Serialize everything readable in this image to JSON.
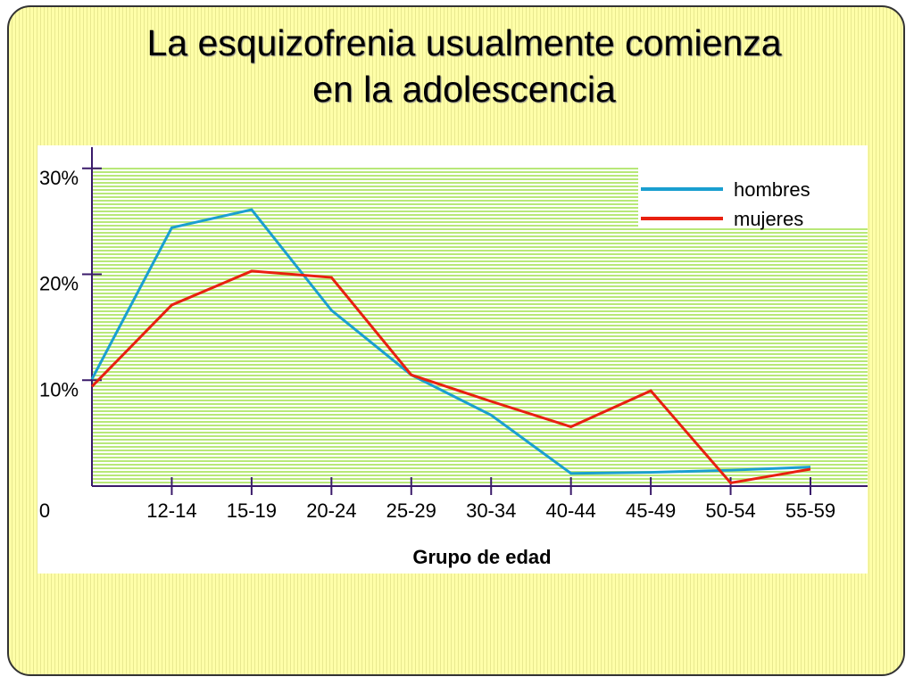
{
  "chart_data": {
    "type": "line",
    "title": "La esquizofrenia usualmente comienza en la adolescencia",
    "x_label": "Grupo de edad",
    "categories": [
      null,
      "12-14",
      "15-19",
      "20-24",
      "25-29",
      "30-34",
      "40-44",
      "45-49",
      "50-54",
      "55-59"
    ],
    "series": [
      {
        "name": "hombres",
        "color": "#1a9fd0",
        "values": [
          10.1,
          24.4,
          26.1,
          16.6,
          10.5,
          6.7,
          1.2,
          1.3,
          1.5,
          1.8
        ]
      },
      {
        "name": "mujeres",
        "color": "#e82010",
        "values": [
          9.4,
          17.1,
          20.3,
          19.7,
          10.5,
          8.0,
          5.6,
          9.0,
          0.3,
          1.6
        ]
      }
    ],
    "ylim": [
      0,
      32
    ],
    "yticks": [
      {
        "value": 0,
        "label": "0"
      },
      {
        "value": 10,
        "label": "10%"
      },
      {
        "value": 20,
        "label": "20%"
      },
      {
        "value": 30,
        "label": "30%"
      }
    ],
    "legend": "upper right"
  }
}
